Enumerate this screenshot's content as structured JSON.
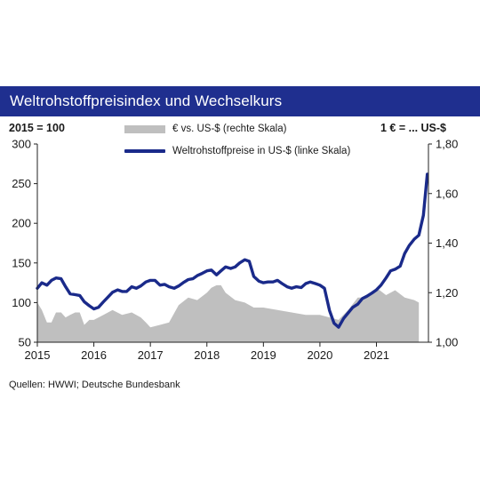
{
  "header": {
    "title": "Weltrohstoffpreisindex und Wechselkurs",
    "left_axis_note": "2015 = 100",
    "right_axis_note": "1 € = ... US-$"
  },
  "legend": {
    "area_label": "€ vs. US-$ (rechte Skala)",
    "line_label": "Weltrohstoffpreise in US-$ (linke Skala)"
  },
  "source": "Quellen: HWWI; Deutsche Bundesbank",
  "colors": {
    "title_bar": "#1f2f8f",
    "line": "#1a2a8a",
    "area": "#bfbfbf"
  },
  "chart_data": {
    "type": "line",
    "x_ticks": [
      "2015",
      "2016",
      "2017",
      "2018",
      "2019",
      "2020",
      "2021"
    ],
    "xlim": [
      2015.0,
      2021.92
    ],
    "y_left": {
      "ticks": [
        "50",
        "100",
        "150",
        "200",
        "250",
        "300"
      ],
      "ylim": [
        50,
        300
      ]
    },
    "y_right": {
      "ticks": [
        "1,00",
        "1,20",
        "1,40",
        "1,60",
        "1,80"
      ],
      "ylim": [
        1.0,
        1.8
      ]
    },
    "grid": false,
    "series": [
      {
        "name": "€ vs. US-$ (rechte Skala)",
        "type": "area",
        "axis": "right",
        "x": [
          2015.0,
          2015.08,
          2015.17,
          2015.25,
          2015.33,
          2015.42,
          2015.5,
          2015.58,
          2015.67,
          2015.75,
          2015.83,
          2015.92,
          2016.0,
          2016.17,
          2016.33,
          2016.5,
          2016.67,
          2016.83,
          2016.92,
          2017.0,
          2017.17,
          2017.33,
          2017.5,
          2017.67,
          2017.83,
          2018.0,
          2018.08,
          2018.17,
          2018.25,
          2018.33,
          2018.5,
          2018.67,
          2018.83,
          2019.0,
          2019.25,
          2019.5,
          2019.75,
          2020.0,
          2020.17,
          2020.33,
          2020.5,
          2020.67,
          2020.83,
          2021.0,
          2021.17,
          2021.33,
          2021.5,
          2021.67,
          2021.75
        ],
        "values": [
          1.16,
          1.13,
          1.08,
          1.08,
          1.12,
          1.12,
          1.1,
          1.11,
          1.12,
          1.12,
          1.07,
          1.09,
          1.09,
          1.11,
          1.13,
          1.11,
          1.12,
          1.1,
          1.08,
          1.06,
          1.07,
          1.08,
          1.15,
          1.18,
          1.17,
          1.2,
          1.22,
          1.23,
          1.23,
          1.2,
          1.17,
          1.16,
          1.14,
          1.14,
          1.13,
          1.12,
          1.11,
          1.11,
          1.1,
          1.09,
          1.13,
          1.18,
          1.18,
          1.22,
          1.19,
          1.21,
          1.18,
          1.17,
          1.16
        ]
      },
      {
        "name": "Weltrohstoffpreise in US-$ (linke Skala)",
        "type": "line",
        "axis": "left",
        "x": [
          2015.0,
          2015.08,
          2015.17,
          2015.25,
          2015.33,
          2015.42,
          2015.5,
          2015.58,
          2015.67,
          2015.75,
          2015.83,
          2015.92,
          2016.0,
          2016.08,
          2016.17,
          2016.25,
          2016.33,
          2016.42,
          2016.5,
          2016.58,
          2016.67,
          2016.75,
          2016.83,
          2016.92,
          2017.0,
          2017.08,
          2017.17,
          2017.25,
          2017.33,
          2017.42,
          2017.5,
          2017.58,
          2017.67,
          2017.75,
          2017.83,
          2017.92,
          2018.0,
          2018.08,
          2018.17,
          2018.25,
          2018.33,
          2018.42,
          2018.5,
          2018.58,
          2018.67,
          2018.75,
          2018.83,
          2018.92,
          2019.0,
          2019.08,
          2019.17,
          2019.25,
          2019.33,
          2019.42,
          2019.5,
          2019.58,
          2019.67,
          2019.75,
          2019.83,
          2019.92,
          2020.0,
          2020.08,
          2020.17,
          2020.25,
          2020.33,
          2020.42,
          2020.5,
          2020.58,
          2020.67,
          2020.75,
          2020.83,
          2020.92,
          2021.0,
          2021.08,
          2021.17,
          2021.25,
          2021.33,
          2021.42,
          2021.5,
          2021.58,
          2021.67,
          2021.75,
          2021.83,
          2021.9
        ],
        "values": [
          118,
          125,
          122,
          128,
          131,
          130,
          120,
          111,
          110,
          109,
          101,
          96,
          92,
          94,
          101,
          107,
          113,
          116,
          114,
          114,
          120,
          118,
          121,
          126,
          128,
          128,
          122,
          123,
          120,
          118,
          121,
          125,
          129,
          130,
          134,
          137,
          140,
          141,
          135,
          140,
          145,
          143,
          145,
          150,
          154,
          152,
          133,
          127,
          125,
          126,
          126,
          128,
          124,
          120,
          118,
          120,
          119,
          124,
          126,
          124,
          122,
          118,
          90,
          74,
          69,
          80,
          87,
          94,
          98,
          105,
          108,
          112,
          116,
          122,
          131,
          140,
          142,
          146,
          162,
          172,
          180,
          185,
          210,
          262
        ]
      }
    ]
  }
}
